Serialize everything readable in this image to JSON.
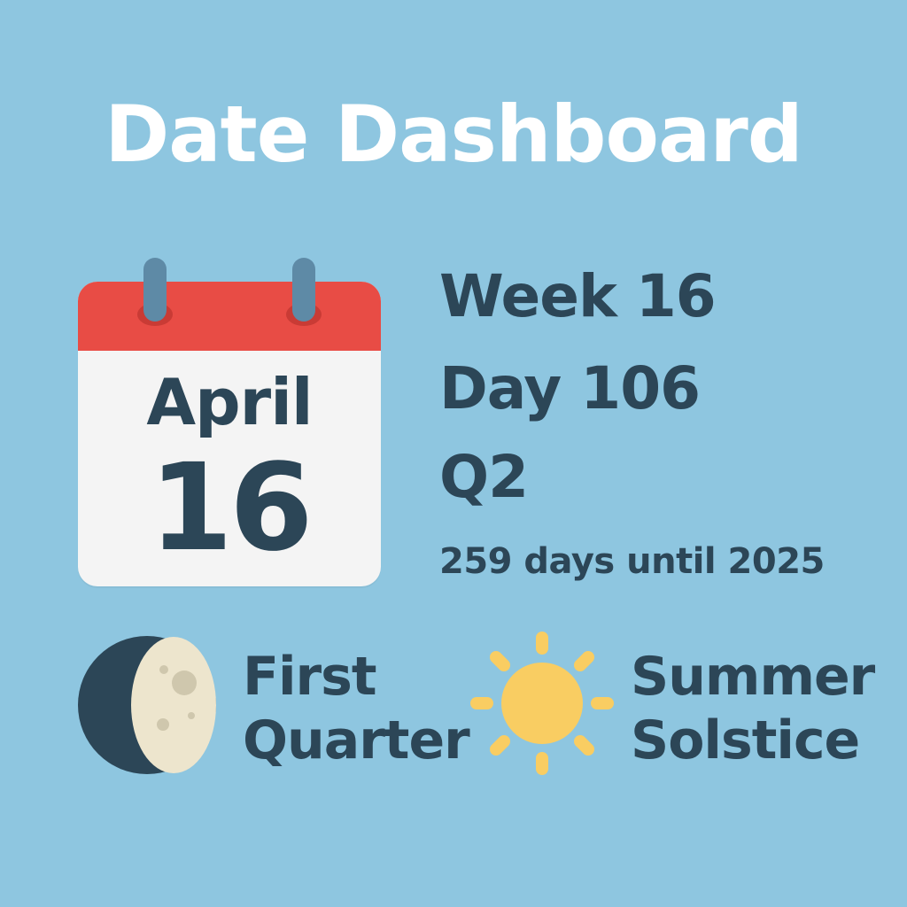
{
  "title": "Date Dashboard",
  "calendar": {
    "month": "April",
    "day": "16"
  },
  "info": {
    "week": "Week 16",
    "day_of_year": "Day 106",
    "quarter": "Q2",
    "countdown": "259 days until 2025"
  },
  "moon": {
    "icon": "moon-phase-icon",
    "label_line1": "First",
    "label_line2": "Quarter"
  },
  "season": {
    "icon": "sun-icon",
    "label_line1": "Summer",
    "label_line2": "Solstice"
  },
  "colors": {
    "background": "#8ec6e0",
    "text": "#2c4657",
    "calendar_header": "#e84c45",
    "sun": "#f9cd62",
    "moon_light": "#ede5cd",
    "moon_dark": "#2c4657"
  }
}
